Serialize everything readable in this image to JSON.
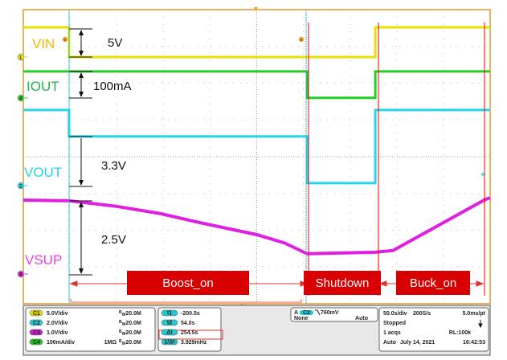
{
  "chart_data": {
    "type": "line",
    "title": "",
    "xlabel": "",
    "ylabel": "",
    "x_unit": "s",
    "y_unit": "div",
    "xlim": [
      -250,
      250
    ],
    "ylim": [
      -4,
      4
    ],
    "grid": true,
    "series": [
      {
        "name": "VIN",
        "channel": "C1",
        "color": "#e8e000",
        "x": [
          -250,
          -201,
          -201,
          127,
          127,
          250
        ],
        "y": [
          3.52,
          3.52,
          2.71,
          2.71,
          3.52,
          3.52
        ]
      },
      {
        "name": "IOUT",
        "channel": "C4",
        "color": "#22d022",
        "x": [
          -250,
          54,
          54,
          127,
          127,
          250
        ],
        "y": [
          2.32,
          2.32,
          1.6,
          1.6,
          2.32,
          2.32
        ]
      },
      {
        "name": "VOUT",
        "channel": "C2",
        "color": "#22d8e8",
        "x": [
          -250,
          -201,
          -201,
          54,
          54,
          127,
          127,
          250
        ],
        "y": [
          1.27,
          1.27,
          0.55,
          0.55,
          -0.72,
          -0.72,
          1.27,
          1.27
        ]
      },
      {
        "name": "VSUP",
        "channel": "C3",
        "color": "#e020e0",
        "x": [
          -250,
          -201,
          -150,
          -103,
          -60,
          0,
          30,
          54,
          127,
          146,
          245,
          250
        ],
        "y": [
          -1.18,
          -1.2,
          -1.35,
          -1.55,
          -1.8,
          -2.12,
          -2.35,
          -2.64,
          -2.6,
          -2.55,
          -1.16,
          -1.12
        ]
      }
    ],
    "trace_labels": [
      {
        "text": "VIN",
        "color": "#f5b800"
      },
      {
        "text": "IOUT",
        "color": "#22b24c"
      },
      {
        "text": "VOUT",
        "color": "#22d3e6"
      },
      {
        "text": "VSUP",
        "color": "#e83ee8"
      }
    ],
    "annotations": [
      "5V",
      "100mA",
      "3.3V",
      "2.5V"
    ],
    "phases": [
      "Boost_on",
      "Shutdown",
      "Buck_on"
    ],
    "cursor_markers": [
      "a",
      "b"
    ],
    "channel_markers": [
      "1",
      "4",
      "2",
      "3"
    ]
  },
  "channels": [
    {
      "id": "C1",
      "scale": "5.0V/div",
      "imp": "",
      "bw": "20.0M",
      "color": "#e0e000"
    },
    {
      "id": "C2",
      "scale": "2.0V/div",
      "imp": "",
      "bw": "20.0M",
      "color": "#22d0d8"
    },
    {
      "id": "C3",
      "scale": "1.0V/div",
      "imp": "",
      "bw": "20.0M",
      "color": "#d020d0"
    },
    {
      "id": "C4",
      "scale": "100mA/div",
      "imp": "1MΩ",
      "bw": "20.0M",
      "color": "#22c822"
    }
  ],
  "bw_prefix": "B",
  "bw_sub": "W",
  "cursors": [
    {
      "label": "t1",
      "value": "-200.5s"
    },
    {
      "label": "t2",
      "value": "54.0s"
    },
    {
      "label": "Δt",
      "value": "254.5s"
    },
    {
      "label": "1/Δt",
      "value": "3.929mHz"
    }
  ],
  "trigger": {
    "mode_label": "A",
    "source": "C2",
    "level": "760mV",
    "coupling": "None",
    "mode": "Auto"
  },
  "timebase": {
    "scale": "50.0s/div",
    "rate": "200S/s",
    "resolution": "5.0ms/pt",
    "state": "Stopped",
    "acqs": "1 acqs",
    "rl": "RL:100k",
    "mode": "Auto",
    "date": "July 14, 2021",
    "time": "16:42:53"
  }
}
